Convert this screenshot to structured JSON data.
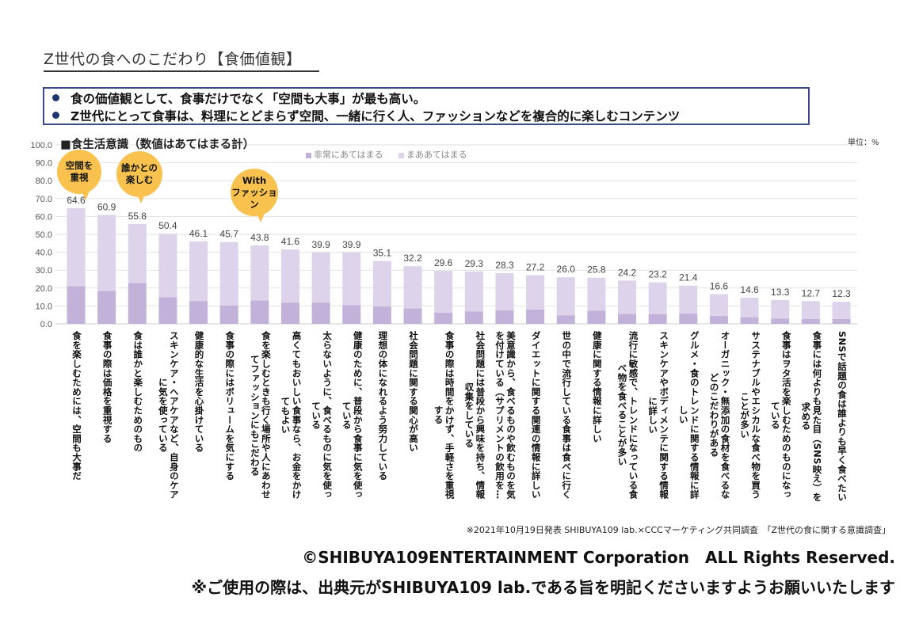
{
  "header": {
    "title": "Z世代の食へのこだわり【食価値観】",
    "bullets": [
      "食の価値観として、食事だけでなく「空間も大事」が最も高い。",
      "Z世代にとって食事は、料理にとどまらず空間、一緒に行く人、ファッションなどを複合的に楽しむコンテンツ"
    ]
  },
  "colors": {
    "very_applicable": "#c2b2da",
    "somewhat_applicable": "#ddd3ea",
    "callout": "#f9c24f",
    "box_border": "#3a4a8a"
  },
  "callouts": [
    {
      "text": "空間を\n重視",
      "bar_index": 0
    },
    {
      "text": "誰かとの\n楽しむ",
      "bar_index": 2
    },
    {
      "text": "With\nファッション",
      "bar_index": 6
    }
  ],
  "chart_data": {
    "type": "bar",
    "stacked": true,
    "title": "■食生活意識（数値はあてはまる計）",
    "unit": "単位：%",
    "ylim": [
      0,
      100
    ],
    "yticks": [
      "0.0",
      "10.0",
      "20.0",
      "30.0",
      "40.0",
      "50.0",
      "60.0",
      "70.0",
      "80.0",
      "90.0",
      "100.0"
    ],
    "grid": true,
    "legend_position": "top",
    "legend": [
      "非常にあてはまる",
      "まああてはまる"
    ],
    "categories": [
      "食を楽しむためには、空間も大事だ",
      "食事の際は価格を重視する",
      "食は誰かと楽しむためのもの",
      "スキンケア・ヘアケアなど、自身のケア\nに気を使っている",
      "健康的な生活を心掛けている",
      "食事の際にはボリュームを気にする",
      "食を楽しむときも行く場所や人にあわせ\nてファッションにもこだわる",
      "高くてもおいしい食事なら、お金をかけ\nてもよい",
      "太らないように、食べるものに気を使っ\nている",
      "健康のために、普段から食事に気を使っ\nている",
      "理想の体になれるよう努力している",
      "社会問題に関する関心が高い",
      "食事の際は時間をかけず、手軽さを重視\nする",
      "社会問題には普段から興味を持ち、情報\n収集をしている",
      "美意識から、食べるものや飲むものを気\nを付けている（サプリメントの飲用を…",
      "ダイエットに関する関連の情報に詳しい",
      "世の中で流行している食事は食べに行く",
      "健康に関する情報に詳しい",
      "流行に敏感で、トレンドになっている食\nべ物を食べることが多い",
      "スキンケアやボディメンテに関する情報\nに詳しい",
      "グルメ・食のトレンドに関する情報に詳\nしい",
      "オーガニック・無添加の食材を食べるな\nどのこだわりがある",
      "サステナブルやエシカルな食べ物を買う\nことが多い",
      "食事はヲタ活を楽しむためのものになっ\nている",
      "食事には何よりも見た目（SNS映え）を\n求める",
      "SNSで話題の食は誰よりも早く食べたい"
    ],
    "totals": [
      64.6,
      60.9,
      55.8,
      50.4,
      46.1,
      45.7,
      43.8,
      41.6,
      39.9,
      39.9,
      35.1,
      32.2,
      29.6,
      29.3,
      28.3,
      27.2,
      26.0,
      25.8,
      24.2,
      23.2,
      21.4,
      16.6,
      14.6,
      13.3,
      12.7,
      12.3
    ],
    "total_labels": [
      "64.6",
      "60.9",
      "55.8",
      "50.4",
      "46.1",
      "45.7",
      "43.8",
      "41.6",
      "39.9",
      "39.9",
      "35.1",
      "32.2",
      "29.6",
      "29.3",
      "28.3",
      "27.2",
      "26.0",
      "25.8",
      "24.2",
      "23.2",
      "21.4",
      "16.6",
      "14.6",
      "13.3",
      "12.7",
      "12.3"
    ],
    "series": [
      {
        "name": "非常にあてはまる",
        "values": [
          21.1,
          18.4,
          22.8,
          14.9,
          12.8,
          10.2,
          13.1,
          11.9,
          11.9,
          10.4,
          9.7,
          8.7,
          6.3,
          6.9,
          7.5,
          8.0,
          4.8,
          7.4,
          5.6,
          5.3,
          5.7,
          4.4,
          3.7,
          3.0,
          2.7,
          2.7
        ]
      },
      {
        "name": "まああてはまる",
        "values": [
          43.5,
          42.5,
          33.0,
          35.5,
          33.3,
          35.5,
          30.7,
          29.7,
          28.0,
          29.5,
          25.4,
          23.5,
          23.3,
          22.4,
          20.8,
          19.2,
          21.2,
          18.4,
          18.6,
          17.9,
          15.7,
          12.2,
          10.9,
          10.3,
          10.0,
          9.6
        ]
      }
    ]
  },
  "footer": {
    "source": "※2021年10月19日発表 SHIBUYA109 lab.×CCCマーケティング共同調査　「Z世代の食に関する意識調査」",
    "copyright": "©SHIBUYA109ENTERTAINMENT Corporation　ALL Rights Reserved.",
    "usage": "※ご使用の際は、出典元がSHIBUYA109 lab.である旨を明記くださいますようお願いいたします"
  }
}
